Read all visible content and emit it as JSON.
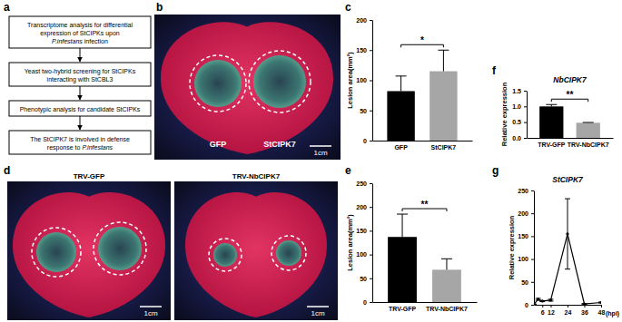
{
  "panel_labels": [
    "a",
    "b",
    "c",
    "d",
    "e",
    "f",
    "g"
  ],
  "flowchart": {
    "steps": [
      {
        "lines": [
          [
            {
              "text": "Transcriptome analysis for differential"
            }
          ],
          [
            {
              "text": "expression of StCIPKs upon"
            }
          ],
          [
            {
              "text": "P.infestans",
              "italic": true
            },
            {
              "text": " infection"
            }
          ]
        ]
      },
      {
        "lines": [
          [
            {
              "text": "Yeast two-hybrid screening for StCIPKs"
            }
          ],
          [
            {
              "text": "interacting with StCBL3"
            }
          ]
        ]
      },
      {
        "lines": [
          [
            {
              "text": "Phenotypic analysis for candidate StCIPKs"
            }
          ]
        ]
      },
      {
        "lines": [
          [
            {
              "text": "The StCIPK7 is involved in defense"
            }
          ],
          [
            {
              "text": "response to "
            },
            {
              "text": "P.infestans",
              "italic": true
            }
          ]
        ]
      }
    ]
  },
  "images": [
    {
      "labels": [
        "GFP",
        "StCIPK7"
      ],
      "scale_bar": "1cm"
    },
    {
      "title": "TRV-GFP",
      "scale_bar": "1cm"
    },
    {
      "title": "TRV-NbCIPK7",
      "scale_bar": "1cm"
    }
  ],
  "chart_data": [
    {
      "type": "bar",
      "y_label": "Lesion area(mm²)",
      "categories": [
        "GFP",
        "StCIPK7"
      ],
      "values": [
        82,
        115
      ],
      "errors": [
        25,
        35
      ],
      "colors": [
        "#000000",
        "#a6a6a6"
      ],
      "ylim": [
        0,
        200
      ],
      "yticks": [
        0,
        50,
        100,
        150,
        200
      ],
      "annotations": [
        "*"
      ]
    },
    {
      "type": "bar",
      "y_label": "Lesion area(mm²)",
      "categories": [
        "TRV-GFP",
        "TRV-NbCIPK7"
      ],
      "values": [
        137,
        68
      ],
      "errors": [
        48,
        23
      ],
      "colors": [
        "#000000",
        "#a6a6a6"
      ],
      "ylim": [
        0,
        250
      ],
      "yticks": [
        0,
        50,
        100,
        150,
        200,
        250
      ],
      "annotations": [
        "**"
      ]
    },
    {
      "type": "bar",
      "title": "NbCIPK7",
      "y_label": "Relative expression",
      "categories": [
        "TRV-GFP",
        "TRV-NbCIPK7"
      ],
      "values": [
        1.0,
        0.48
      ],
      "errors": [
        0.06,
        0.01
      ],
      "colors": [
        "#000000",
        "#a6a6a6"
      ],
      "ylim": [
        0,
        1.5
      ],
      "yticks": [
        {
          "value": 0,
          "label": "0.0"
        },
        {
          "value": 0.5,
          "label": "0.5"
        },
        {
          "value": 1,
          "label": "1.0"
        },
        {
          "value": 1.5,
          "label": "1.5"
        }
      ],
      "annotations": [
        "**"
      ]
    },
    {
      "type": "line",
      "title": "StCIPK7",
      "y_label": "Relative expression",
      "x_label": "(hpi)",
      "x": [
        0,
        3,
        6,
        12,
        24,
        36,
        48
      ],
      "values": [
        1,
        12,
        8,
        10,
        155,
        2,
        5
      ],
      "errors": [
        0.5,
        2,
        1,
        2,
        77,
        0.5,
        1
      ],
      "color": "#000000",
      "marker": "circle",
      "xlim": [
        0,
        48
      ],
      "xticks": [
        6,
        12,
        24,
        36,
        48
      ],
      "ylim": [
        0,
        250
      ],
      "yticks": [
        0,
        50,
        100,
        150,
        200,
        250
      ]
    }
  ]
}
